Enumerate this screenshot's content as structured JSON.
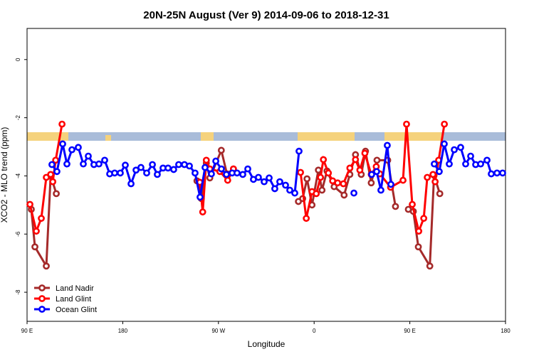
{
  "chart_data": {
    "type": "line",
    "title": "20N-25N August (Ver 9)   2014-09-06 to 2018-12-31",
    "xlabel": "Longitude",
    "ylabel": "XCO2 - MLO trend (ppm)",
    "xlim": [
      90,
      540
    ],
    "ylim": [
      -9,
      1.07
    ],
    "xticks": [
      {
        "value": 90,
        "label": "90 E"
      },
      {
        "value": 180,
        "label": "180"
      },
      {
        "value": 270,
        "label": "90 W"
      },
      {
        "value": 360,
        "label": "0"
      },
      {
        "value": 450,
        "label": "90 E"
      },
      {
        "value": 540,
        "label": "180"
      }
    ],
    "yticks": [
      -8,
      -6,
      -4,
      -2,
      0
    ],
    "legend": "bottom-left",
    "series": [
      {
        "name": "Land Nadir",
        "color": "#a52a2a",
        "x": [
          94.0,
          97.4,
          108.1,
          112.2,
          117.5,
          null,
          249.8,
          253.9,
          258.6,
          261.9,
          272.7,
          278.0,
          284.1,
          null,
          345.2,
          349.2,
          353.3,
          358.0,
          364.0,
          367.4,
          372.1,
          378.8,
          388.2,
          393.6,
          398.9,
          404.3,
          408.3,
          413.7,
          419.1,
          429.2,
          436.5,
          null,
          448.6,
          453.3,
          458.0,
          468.8,
          472.8,
          478.2
        ],
        "values": [
          -5.15,
          -6.44,
          -7.1,
          -3.98,
          -4.61,
          null,
          -4.17,
          -4.78,
          -3.56,
          -4.07,
          -3.12,
          -3.93,
          -3.76,
          null,
          -4.88,
          -4.78,
          -4.1,
          -5.0,
          -3.8,
          -4.49,
          -3.83,
          -4.37,
          -4.66,
          -3.95,
          -3.27,
          -3.95,
          -3.15,
          -4.24,
          -3.46,
          -3.46,
          -5.05,
          null,
          -5.15,
          -5.22,
          -6.44,
          -7.1,
          -3.98,
          -4.61
        ]
      },
      {
        "name": "Land Glint",
        "color": "#ff0000",
        "x": [
          92.7,
          98.7,
          103.4,
          108.1,
          112.2,
          114.2,
          116.9,
          122.9,
          null,
          252.5,
          255.2,
          258.6,
          261.9,
          271.3,
          278.7,
          284.1,
          null,
          347.2,
          352.6,
          358.0,
          362.0,
          366.0,
          368.7,
          373.4,
          377.4,
          382.1,
          387.5,
          393.6,
          398.9,
          403.0,
          407.7,
          413.7,
          418.4,
          421.8,
          431.9,
          443.6,
          446.9,
          452.3,
          458.4,
          463.1,
          466.4,
          471.8,
          473.8,
          477.1,
          482.5
        ],
        "values": [
          -4.98,
          -5.9,
          -5.46,
          -4.05,
          -3.95,
          -4.2,
          -3.46,
          -2.22,
          null,
          -4.22,
          -5.24,
          -3.46,
          -3.76,
          -3.85,
          -4.15,
          -3.76,
          null,
          -3.88,
          -5.46,
          -4.54,
          -4.61,
          -4.05,
          -3.44,
          -3.9,
          -4.17,
          -4.24,
          -4.27,
          -3.73,
          -3.44,
          -3.8,
          -3.22,
          -3.95,
          -3.68,
          -3.93,
          -4.39,
          -4.15,
          -2.22,
          -4.98,
          -5.9,
          -5.46,
          -4.05,
          -3.95,
          -4.2,
          -3.46,
          -2.22
        ]
      },
      {
        "name": "Ocean Glint",
        "color": "#0000ff",
        "x": [
          113.4,
          118.1,
          123.5,
          127.5,
          132.2,
          138.2,
          142.9,
          147.6,
          152.9,
          157.6,
          163.0,
          167.7,
          172.4,
          177.7,
          182.4,
          187.8,
          192.5,
          197.1,
          202.5,
          207.9,
          212.5,
          217.9,
          222.6,
          227.9,
          232.6,
          238.0,
          242.7,
          248.0,
          252.7,
          257.4,
          263.4,
          267.5,
          272.8,
          277.5,
          282.9,
          287.5,
          292.9,
          297.6,
          302.9,
          307.6,
          313.0,
          317.7,
          323.0,
          327.7,
          333.1,
          337.1,
          341.8,
          345.8,
          null,
          397.4,
          null,
          414.1,
          418.8,
          422.8,
          428.8,
          432.2,
          null,
          473.0,
          477.7,
          482.4,
          487.1,
          491.8,
          497.8,
          502.5,
          507.2,
          511.9,
          516.6,
          522.6,
          526.6,
          532.0,
          537.3
        ],
        "values": [
          -3.61,
          -3.85,
          -2.9,
          -3.59,
          -3.1,
          -3.02,
          -3.59,
          -3.32,
          -3.61,
          -3.59,
          -3.46,
          -3.93,
          -3.9,
          -3.9,
          -3.63,
          -4.27,
          -3.8,
          -3.71,
          -3.9,
          -3.61,
          -3.95,
          -3.73,
          -3.73,
          -3.78,
          -3.61,
          -3.61,
          -3.66,
          -3.9,
          -4.73,
          -3.71,
          -3.93,
          -3.49,
          -3.76,
          -3.95,
          -3.9,
          -3.9,
          -3.95,
          -3.76,
          -4.12,
          -4.05,
          -4.2,
          -4.07,
          -4.44,
          -4.2,
          -4.32,
          -4.49,
          -4.59,
          -3.15,
          null,
          -4.59,
          null,
          -3.95,
          -3.85,
          -4.49,
          -2.95,
          -4.29,
          null,
          -3.59,
          -3.85,
          -2.9,
          -3.59,
          -3.1,
          -3.02,
          -3.59,
          -3.32,
          -3.61,
          -3.59,
          -3.46,
          -3.93,
          -3.9,
          -3.9
        ]
      }
    ]
  }
}
